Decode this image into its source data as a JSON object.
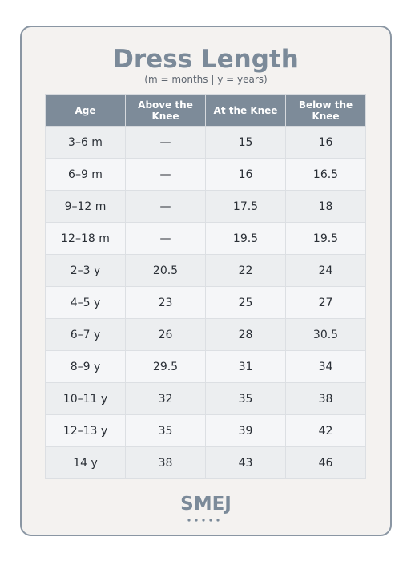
{
  "header": {
    "title": "Dress Length",
    "subtitle": "(m = months | y = years)"
  },
  "table": {
    "headers": [
      "Age",
      "Above the Knee",
      "At the Knee",
      "Below the Knee"
    ],
    "rows": [
      [
        "3–6 m",
        "—",
        15,
        16
      ],
      [
        "6–9 m",
        "—",
        16,
        16.5
      ],
      [
        "9–12 m",
        "—",
        17.5,
        18
      ],
      [
        "12–18 m",
        "—",
        19.5,
        19.5
      ],
      [
        "2–3 y",
        20.5,
        22,
        24
      ],
      [
        "4–5 y",
        23,
        25,
        27
      ],
      [
        "6–7 y",
        26,
        28,
        30.5
      ],
      [
        "8–9 y",
        29.5,
        31,
        34
      ],
      [
        "10–11 y",
        32,
        35,
        38
      ],
      [
        "12–13 y",
        35,
        39,
        42
      ],
      [
        "14 y",
        38,
        43,
        46
      ]
    ]
  },
  "logo": {
    "text": "SMEJ"
  }
}
